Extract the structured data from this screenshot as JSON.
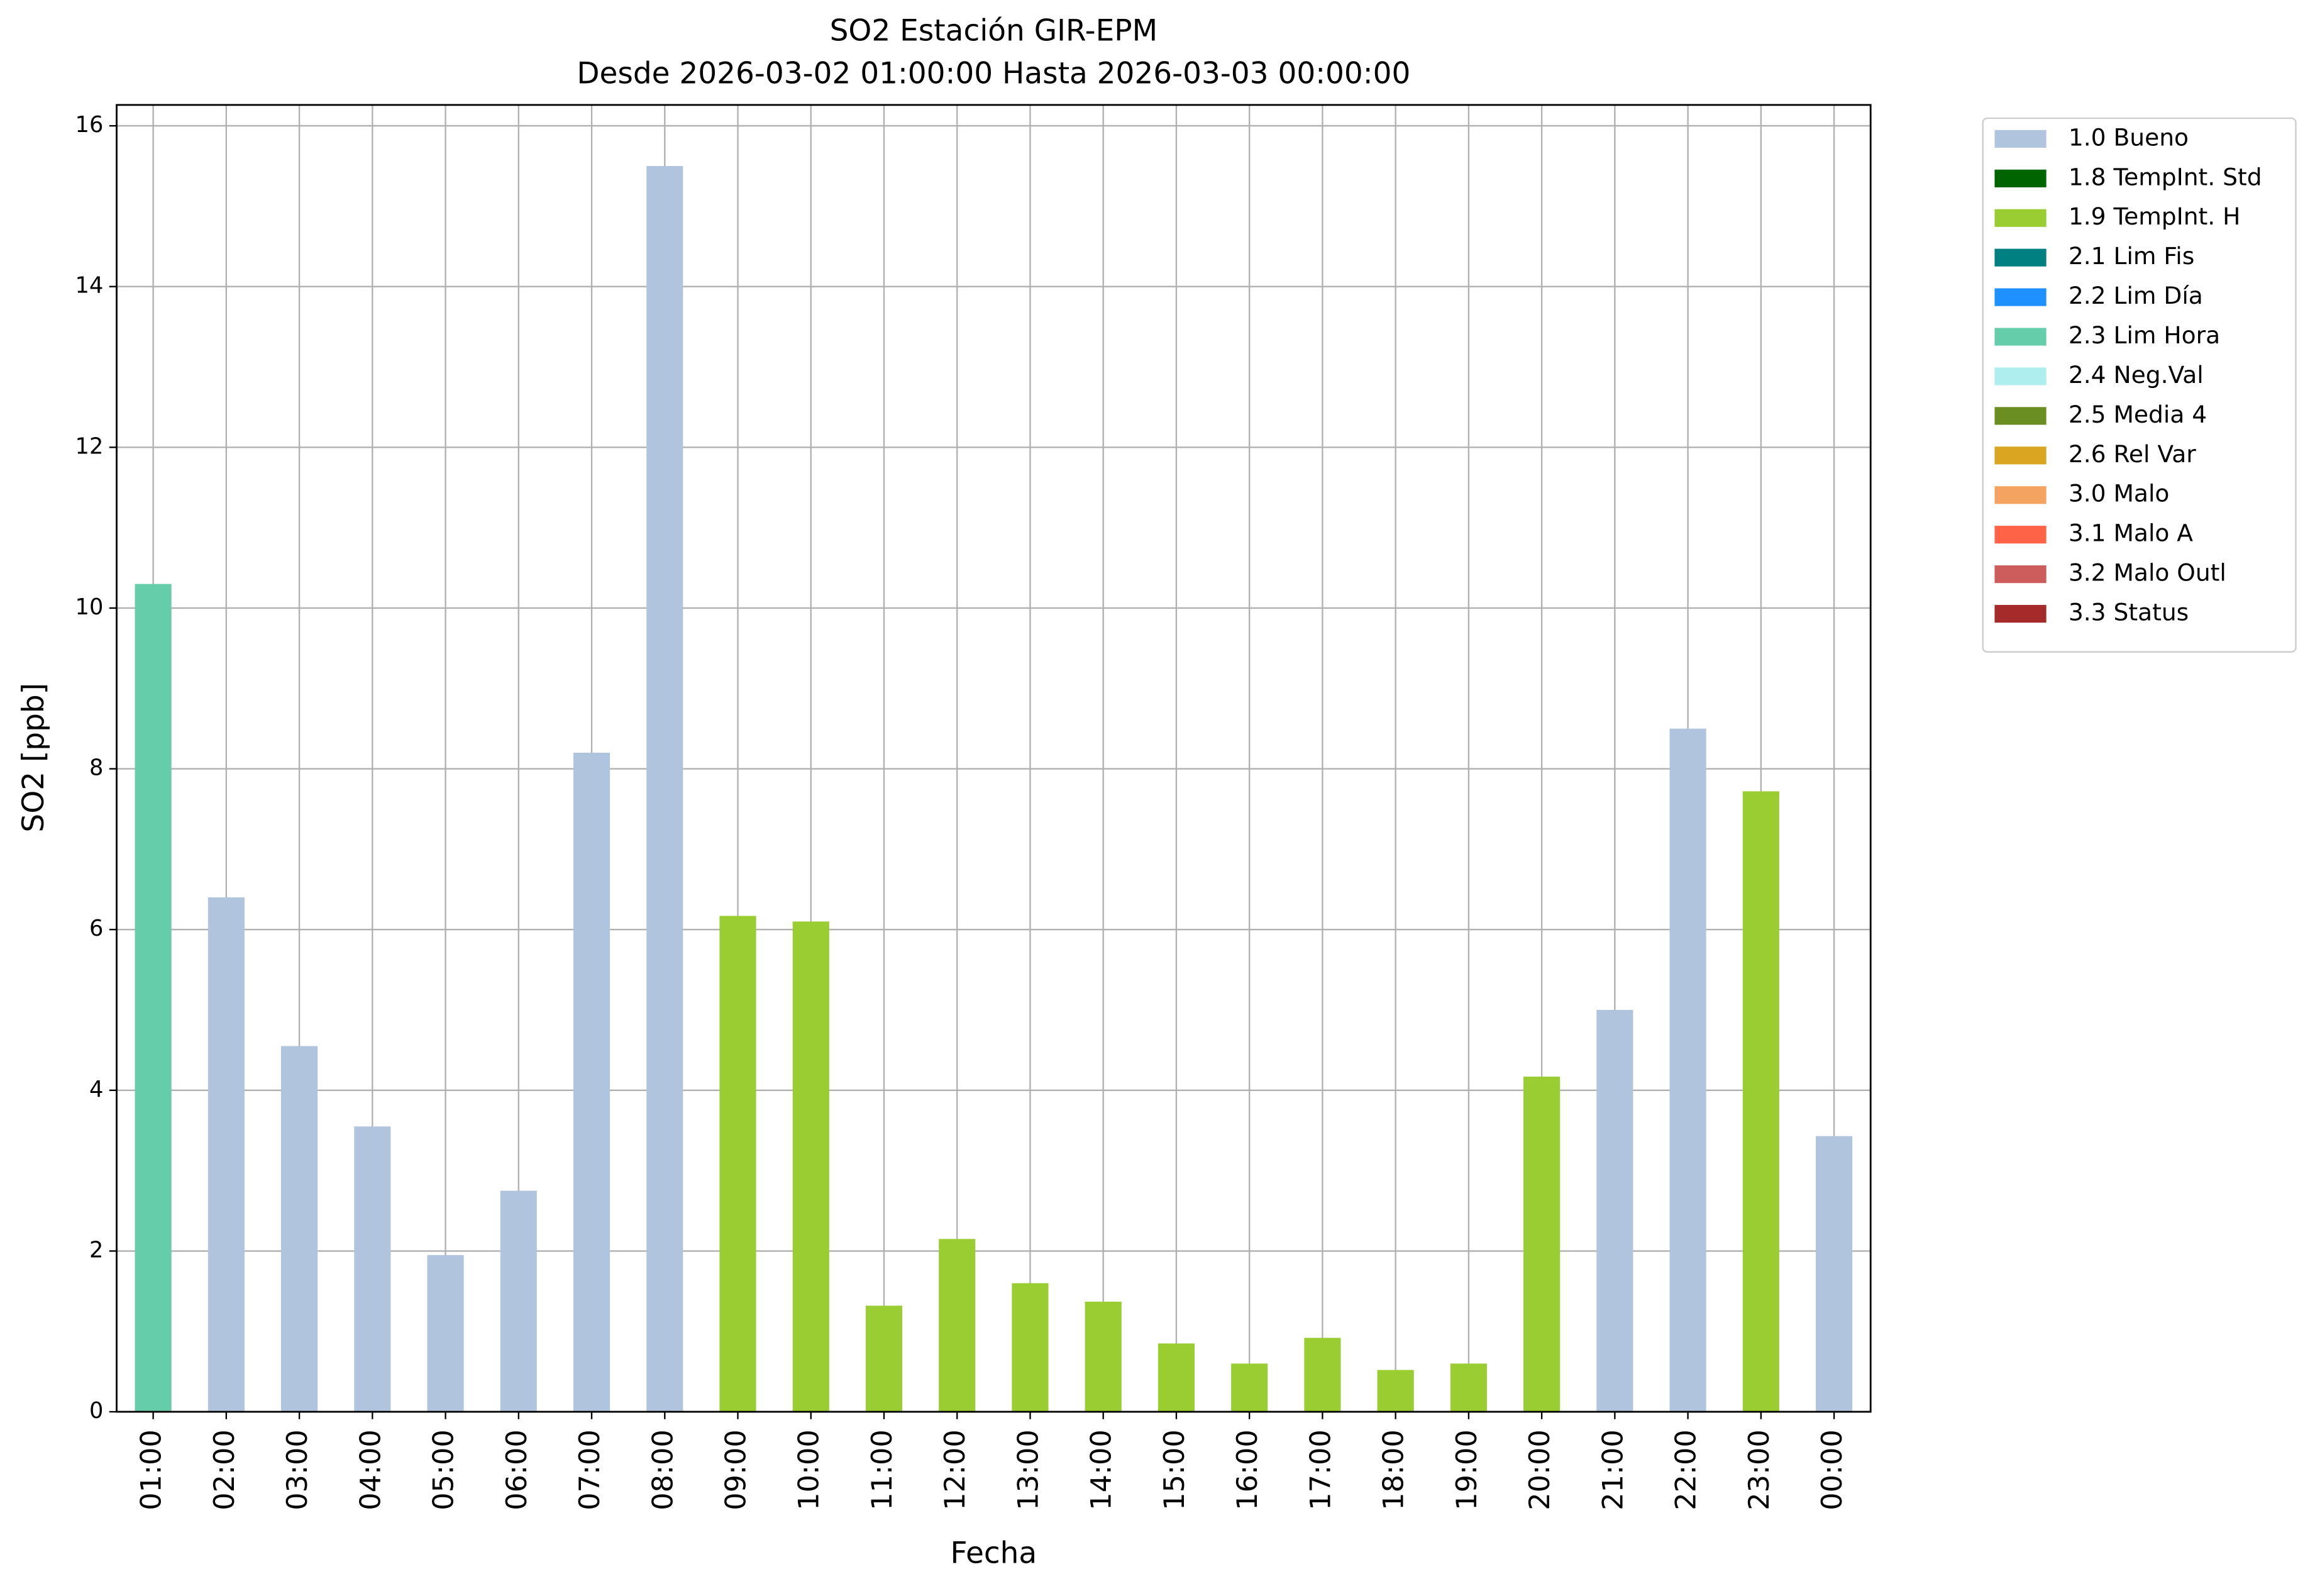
{
  "chart_data": {
    "type": "bar",
    "stacked": true,
    "title": "SO2 Estación GIR-EPM",
    "subtitle": "Desde 2026-03-02 01:00:00 Hasta 2026-03-03 00:00:00",
    "x_label": "Fecha",
    "y_label": "SO2 [ppb]",
    "categories": [
      "01:00",
      "02:00",
      "03:00",
      "04:00",
      "05:00",
      "06:00",
      "07:00",
      "08:00",
      "09:00",
      "10:00",
      "11:00",
      "12:00",
      "13:00",
      "14:00",
      "15:00",
      "16:00",
      "17:00",
      "18:00",
      "19:00",
      "20:00",
      "21:00",
      "22:00",
      "23:00",
      "00:00"
    ],
    "ylim": [
      0,
      16.26
    ],
    "yticks": [
      0,
      2,
      4,
      6,
      8,
      10,
      12,
      14,
      16
    ],
    "grid": true,
    "legend": "outside-right",
    "series": [
      {
        "name": "1.0 Bueno",
        "color": "#b0c4de",
        "values": [
          null,
          6.4,
          4.55,
          3.55,
          1.95,
          2.75,
          8.2,
          15.5,
          null,
          null,
          null,
          null,
          null,
          null,
          null,
          null,
          null,
          null,
          null,
          null,
          5.0,
          8.5,
          null,
          3.43
        ]
      },
      {
        "name": "1.8 TempInt. Std",
        "color": "#006400",
        "values": [
          null,
          null,
          null,
          null,
          null,
          null,
          null,
          null,
          null,
          null,
          null,
          null,
          null,
          null,
          null,
          null,
          null,
          null,
          null,
          null,
          null,
          null,
          null,
          null
        ]
      },
      {
        "name": "1.9 TempInt. H",
        "color": "#9acd32",
        "values": [
          null,
          null,
          null,
          null,
          null,
          null,
          null,
          null,
          6.17,
          6.1,
          1.32,
          2.15,
          1.6,
          1.37,
          0.85,
          0.6,
          0.92,
          0.52,
          0.6,
          4.17,
          null,
          null,
          7.72,
          null
        ]
      },
      {
        "name": "2.1 Lim Fis",
        "color": "#008080",
        "values": [
          null,
          null,
          null,
          null,
          null,
          null,
          null,
          null,
          null,
          null,
          null,
          null,
          null,
          null,
          null,
          null,
          null,
          null,
          null,
          null,
          null,
          null,
          null,
          null
        ]
      },
      {
        "name": "2.2 Lim Día",
        "color": "#1e90ff",
        "values": [
          null,
          null,
          null,
          null,
          null,
          null,
          null,
          null,
          null,
          null,
          null,
          null,
          null,
          null,
          null,
          null,
          null,
          null,
          null,
          null,
          null,
          null,
          null,
          null
        ]
      },
      {
        "name": "2.3 Lim Hora",
        "color": "#66cdaa",
        "values": [
          10.3,
          null,
          null,
          null,
          null,
          null,
          null,
          null,
          null,
          null,
          null,
          null,
          null,
          null,
          null,
          null,
          null,
          null,
          null,
          null,
          null,
          null,
          null,
          null
        ]
      },
      {
        "name": "2.4 Neg.Val",
        "color": "#afeeee",
        "values": [
          null,
          null,
          null,
          null,
          null,
          null,
          null,
          null,
          null,
          null,
          null,
          null,
          null,
          null,
          null,
          null,
          null,
          null,
          null,
          null,
          null,
          null,
          null,
          null
        ]
      },
      {
        "name": "2.5 Media 4",
        "color": "#6b8e23",
        "values": [
          null,
          null,
          null,
          null,
          null,
          null,
          null,
          null,
          null,
          null,
          null,
          null,
          null,
          null,
          null,
          null,
          null,
          null,
          null,
          null,
          null,
          null,
          null,
          null
        ]
      },
      {
        "name": "2.6 Rel Var",
        "color": "#daa520",
        "values": [
          null,
          null,
          null,
          null,
          null,
          null,
          null,
          null,
          null,
          null,
          null,
          null,
          null,
          null,
          null,
          null,
          null,
          null,
          null,
          null,
          null,
          null,
          null,
          null
        ]
      },
      {
        "name": "3.0 Malo",
        "color": "#f4a460",
        "values": [
          null,
          null,
          null,
          null,
          null,
          null,
          null,
          null,
          null,
          null,
          null,
          null,
          null,
          null,
          null,
          null,
          null,
          null,
          null,
          null,
          null,
          null,
          null,
          null
        ]
      },
      {
        "name": "3.1 Malo A",
        "color": "#ff6347",
        "values": [
          null,
          null,
          null,
          null,
          null,
          null,
          null,
          null,
          null,
          null,
          null,
          null,
          null,
          null,
          null,
          null,
          null,
          null,
          null,
          null,
          null,
          null,
          null,
          null
        ]
      },
      {
        "name": "3.2 Malo Outl",
        "color": "#cd5c5c",
        "values": [
          null,
          null,
          null,
          null,
          null,
          null,
          null,
          null,
          null,
          null,
          null,
          null,
          null,
          null,
          null,
          null,
          null,
          null,
          null,
          null,
          null,
          null,
          null,
          null
        ]
      },
      {
        "name": "3.3 Status",
        "color": "#a52a2a",
        "values": [
          null,
          null,
          null,
          null,
          null,
          null,
          null,
          null,
          null,
          null,
          null,
          null,
          null,
          null,
          null,
          null,
          null,
          null,
          null,
          null,
          null,
          null,
          null,
          null
        ]
      }
    ]
  }
}
